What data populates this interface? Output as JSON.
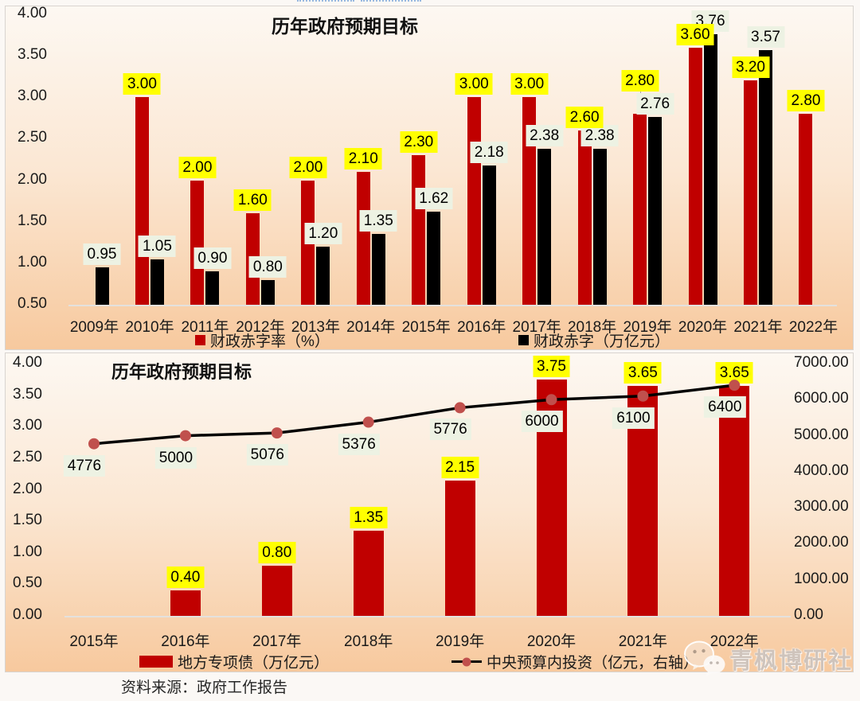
{
  "source_note": "资料来源：政府工作报告",
  "watermark": {
    "text": "青枫博研社",
    "icon": "wechat-icon"
  },
  "chart_data": [
    {
      "type": "bar",
      "title": "历年政府预期目标",
      "categories": [
        "2009年",
        "2010年",
        "2011年",
        "2012年",
        "2013年",
        "2014年",
        "2015年",
        "2016年",
        "2017年",
        "2018年",
        "2019年",
        "2020年",
        "2021年",
        "2022年"
      ],
      "series": [
        {
          "name": "财政赤字率（%）",
          "color": "#C00000",
          "label_bg": "#FFFF00",
          "label_decimals": 2,
          "values": [
            null,
            3.0,
            2.0,
            1.6,
            2.0,
            2.1,
            2.3,
            3.0,
            3.0,
            2.6,
            2.8,
            3.6,
            3.2,
            2.8
          ]
        },
        {
          "name": "财政赤字（万亿元）",
          "color": "#000000",
          "label_bg": "#EDF2E3",
          "label_decimals": 2,
          "values": [
            0.95,
            1.05,
            0.9,
            0.8,
            1.2,
            1.35,
            1.62,
            2.18,
            2.38,
            2.38,
            2.76,
            3.76,
            3.57,
            null
          ]
        }
      ],
      "ylim": [
        0.5,
        4.0
      ],
      "yticks": [
        "4.00",
        "3.50",
        "3.00",
        "2.50",
        "2.00",
        "1.50",
        "1.00",
        "0.50"
      ],
      "grid": false,
      "legend_position": "bottom"
    },
    {
      "type": "bar+line",
      "title": "历年政府预期目标",
      "categories": [
        "2015年",
        "2016年",
        "2017年",
        "2018年",
        "2019年",
        "2020年",
        "2021年",
        "2022年"
      ],
      "series": [
        {
          "type": "bar",
          "axis": "left",
          "name": "地方专项债（万亿元）",
          "color": "#C00000",
          "label_bg": "#FFFF00",
          "label_decimals": 2,
          "values": [
            null,
            0.4,
            0.8,
            1.35,
            2.15,
            3.75,
            3.65,
            3.65
          ]
        },
        {
          "type": "line",
          "axis": "right",
          "name": "中央预算内投资（亿元，右轴）",
          "line_color": "#000000",
          "marker_color": "#C0504D",
          "label_bg": "#EDF2E3",
          "label_decimals": 0,
          "values": [
            4776,
            5000,
            5076,
            5376,
            5776,
            6000,
            6100,
            6400
          ]
        }
      ],
      "left_ylim": [
        0.0,
        4.0
      ],
      "right_ylim": [
        0.0,
        7000.0
      ],
      "left_yticks": [
        "4.00",
        "3.50",
        "3.00",
        "2.50",
        "2.00",
        "1.50",
        "1.00",
        "0.50",
        "0.00"
      ],
      "right_yticks": [
        "7000.00",
        "6000.00",
        "5000.00",
        "4000.00",
        "3000.00",
        "2000.00",
        "1000.00",
        "0.00"
      ],
      "grid": false,
      "legend_position": "bottom"
    }
  ]
}
